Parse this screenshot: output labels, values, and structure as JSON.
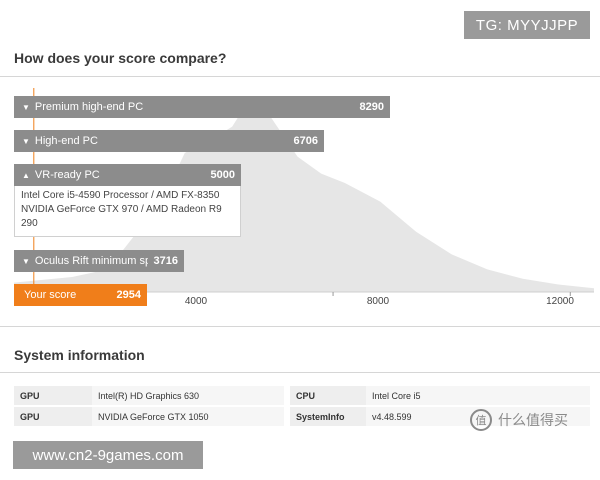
{
  "badge": {
    "tg": "TG: MYYJJPP"
  },
  "compare": {
    "title": "How does your score compare?"
  },
  "chart_data": {
    "type": "area",
    "title": "",
    "xlabel": "",
    "ylabel": "",
    "x_ticks": [
      4000,
      8000,
      12000
    ],
    "x_tick_labels": [
      "4000",
      "8000",
      "12000"
    ],
    "xlim": [
      2620,
      12400
    ],
    "distribution": {
      "x": [
        2620,
        3600,
        4200,
        4700,
        5200,
        5500,
        5900,
        6300,
        6500,
        6800,
        7100,
        7400,
        7800,
        8200,
        8800,
        9400,
        10000,
        10600,
        11200,
        11800,
        12400
      ],
      "y": [
        0.05,
        0.08,
        0.12,
        0.32,
        0.54,
        0.74,
        0.8,
        0.88,
        0.98,
        1.0,
        0.86,
        0.72,
        0.63,
        0.58,
        0.48,
        0.32,
        0.2,
        0.12,
        0.07,
        0.04,
        0.02
      ]
    },
    "color": "#e6e6e6",
    "marker_line": {
      "value": 2954,
      "color": "#f07e1a"
    },
    "bars": [
      {
        "label": "Premium high-end PC",
        "value": 8290
      },
      {
        "label": "High-end PC",
        "value": 6706
      },
      {
        "label": "VR-ready PC",
        "value": 5000
      },
      {
        "label": "Oculus Rift minimum spe",
        "value": 3716
      },
      {
        "label": "Your score",
        "value": 2954
      }
    ],
    "vr_details": {
      "line1": "Intel Core i5-4590 Processor / AMD FX-8350",
      "line2": "NVIDIA GeForce GTX 970 / AMD Radeon R9",
      "line3": "290"
    }
  },
  "system": {
    "title": "System information",
    "rows": [
      {
        "k1": "GPU",
        "v1": "Intel(R) HD Graphics 630",
        "k2": "CPU",
        "v2": "Intel Core i5"
      },
      {
        "k1": "GPU",
        "v1": "NVIDIA GeForce GTX 1050",
        "k2": "SystemInfo",
        "v2": "v4.48.599"
      }
    ]
  },
  "watermark": {
    "text": "什么值得买",
    "icon": "值"
  },
  "url_banner": {
    "text": "www.cn2-9games.com"
  },
  "colors": {
    "bar": "#8c8c8c",
    "score_bar": "#f07e1a",
    "accent": "#f07e1a"
  }
}
